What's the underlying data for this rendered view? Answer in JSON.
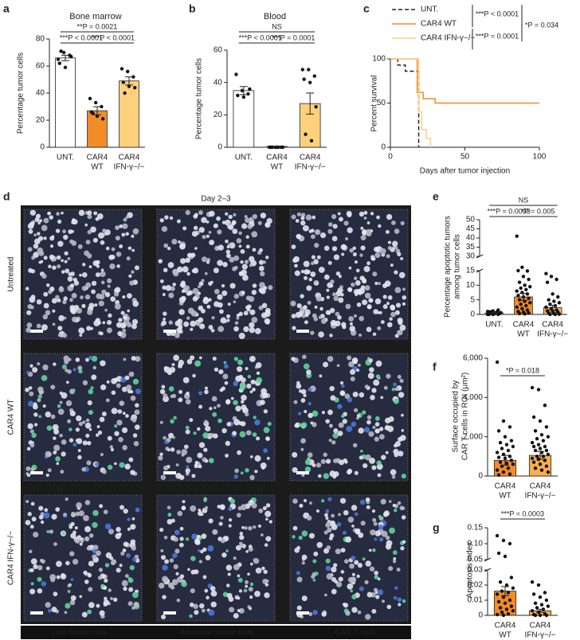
{
  "chart_data": [
    {
      "type": "bar",
      "panel": "a",
      "title": "Bone marrow",
      "ylabel": [
        "Percentage tumor cells"
      ],
      "categories": [
        [
          "UNT."
        ],
        [
          "CAR4",
          "WT"
        ],
        [
          "CAR4",
          "IFN-γ−/−"
        ]
      ],
      "values": [
        66,
        27,
        49
      ],
      "errors": [
        2,
        3,
        3
      ],
      "points": [
        [
          65,
          70,
          68,
          62,
          59,
          67,
          71
        ],
        [
          36,
          33,
          30,
          26,
          23,
          21,
          25
        ],
        [
          58,
          56,
          52,
          48,
          45,
          44,
          40
        ]
      ],
      "colors": [
        "#ffffff",
        "#f28c28",
        "#fdd17c"
      ],
      "ylim": [
        0,
        80
      ],
      "yticks": [
        0,
        20,
        40,
        60,
        80
      ],
      "annotations": [
        "**P = 0.0021",
        "***P < 0.0001",
        "***P < 0.0001"
      ]
    },
    {
      "type": "bar",
      "panel": "b",
      "title": "Blood",
      "ylabel": [
        "Percentage tumor cells"
      ],
      "categories": [
        [
          "UNT."
        ],
        [
          "CAR4",
          "WT"
        ],
        [
          "CAR4",
          "IFN-γ−/−"
        ]
      ],
      "values": [
        35,
        0.5,
        27
      ],
      "errors": [
        2.5,
        0.2,
        6.5
      ],
      "points": [
        [
          45,
          35,
          33,
          32,
          31,
          36
        ],
        [
          0,
          0,
          0,
          0,
          0,
          0,
          0,
          0
        ],
        [
          48,
          48,
          44,
          42,
          40,
          25,
          8,
          4
        ]
      ],
      "colors": [
        "#ffffff",
        "#f28c28",
        "#fdd17c"
      ],
      "ylim": [
        0,
        60
      ],
      "yticks": [
        0,
        20,
        40,
        60
      ],
      "annotations": [
        "NS",
        "***P < 0.0001",
        "***P = 0.0001"
      ]
    },
    {
      "type": "line",
      "panel": "c",
      "xlabel": "Days after tumor injection",
      "ylabel": [
        "Percent survival"
      ],
      "series": [
        {
          "name": "UNT.",
          "color": "#222222",
          "dashed": true,
          "x": [
            0,
            5,
            5,
            10,
            10,
            19,
            19
          ],
          "values": [
            100,
            100,
            93,
            93,
            86,
            86,
            0
          ]
        },
        {
          "name": "CAR4 WT",
          "color": "#f28c28",
          "dashed": false,
          "x": [
            0,
            18,
            18,
            22,
            22,
            30,
            30,
            100
          ],
          "values": [
            100,
            100,
            62,
            62,
            55,
            55,
            50,
            50
          ]
        },
        {
          "name": "CAR4 IFN-γ−/−",
          "color": "#fdd17c",
          "dashed": false,
          "x": [
            0,
            19,
            19,
            21,
            21,
            24,
            24,
            27,
            27
          ],
          "values": [
            100,
            100,
            40,
            40,
            20,
            20,
            10,
            10,
            0
          ]
        }
      ],
      "xlim": [
        0,
        100
      ],
      "xticks": [
        0,
        50,
        100
      ],
      "ylim": [
        0,
        100
      ],
      "yticks": [
        0,
        50,
        100
      ],
      "annotations": [
        "***P < 0.0001",
        "***P = 0.0001",
        "*P = 0.034"
      ]
    },
    {
      "type": "bar",
      "panel": "e",
      "ylabel": [
        "Percentage apoptotic tumors",
        "among tumor cells"
      ],
      "categories": [
        [
          "UNT."
        ],
        [
          "CAR4",
          "WT"
        ],
        [
          "CAR4",
          "IFN-γ−/−"
        ]
      ],
      "values": [
        0.5,
        6,
        2.3
      ],
      "errors": [
        0.2,
        1.2,
        0.8
      ],
      "points": [
        [
          0,
          0,
          0,
          0.1,
          0.2,
          0.3,
          0.4,
          0.5,
          0.6,
          0.7,
          0.8,
          1,
          1.2,
          1.5,
          0,
          0.2,
          0.4,
          0.9
        ],
        [
          41,
          24,
          22,
          15,
          13,
          12,
          11,
          10,
          9.5,
          9,
          8.5,
          8,
          7.5,
          7,
          6.5,
          6,
          5.5,
          5,
          4.5,
          4,
          3.5,
          3,
          2.5,
          2,
          1.5,
          1,
          0.8,
          0.5,
          0.3,
          0.2
        ],
        [
          14,
          13,
          12,
          11,
          7,
          6,
          5,
          4.5,
          4,
          3.5,
          3,
          2.5,
          2,
          1.5,
          1.2,
          1,
          0.8,
          0.5,
          0.3,
          0.1,
          0,
          0
        ]
      ],
      "colors": [
        "#ffffff",
        "#f28c28",
        "#f8b04c"
      ],
      "ylim": [
        0,
        50
      ],
      "ybreak": [
        15,
        30
      ],
      "yticks": [
        0,
        5,
        10,
        15,
        30,
        35,
        40,
        45,
        50
      ],
      "annotations": [
        "NS",
        "***P = 0.0003",
        "*P = 0.005"
      ]
    },
    {
      "type": "bar",
      "panel": "f",
      "ylabel": [
        "Surface occupied by",
        "CAR T cells in ROI (μm²)"
      ],
      "categories": [
        [
          "CAR4",
          "WT"
        ],
        [
          "CAR4",
          "IFN-γ−/−"
        ]
      ],
      "values": [
        800,
        1050
      ],
      "errors": [
        250,
        200
      ],
      "points": [
        [
          5800,
          2800,
          2500,
          2300,
          2000,
          1800,
          1700,
          1600,
          1500,
          1400,
          1300,
          1200,
          1100,
          1000,
          950,
          900,
          800,
          700,
          650,
          600,
          500,
          400,
          300,
          200,
          100,
          50
        ],
        [
          4500,
          4400,
          3600,
          3000,
          2800,
          2500,
          2300,
          2100,
          2000,
          1900,
          1800,
          1700,
          1600,
          1500,
          1500,
          1400,
          1300,
          1300,
          1200,
          1100,
          1000,
          1000,
          900,
          850,
          800,
          700,
          600,
          500,
          400,
          300,
          200
        ]
      ],
      "colors": [
        "#f28c28",
        "#f8b04c"
      ],
      "ylim": [
        0,
        6000
      ],
      "yticks": [
        0,
        {
          "value": 2000,
          "label": "2,000"
        },
        {
          "value": 4000,
          "label": "4,000"
        },
        {
          "value": 6000,
          "label": "6,000"
        }
      ],
      "annotations": [
        "*P = 0.018"
      ]
    },
    {
      "type": "bar",
      "panel": "g",
      "ylabel": [
        "Apoptosis index"
      ],
      "categories": [
        [
          "CAR4",
          "WT"
        ],
        [
          "CAR4",
          "IFN-γ−/−"
        ]
      ],
      "values": [
        0.016,
        0.003
      ],
      "errors": [
        0.003,
        0.001
      ],
      "points": [
        [
          0.125,
          0.11,
          0.1,
          0.07,
          0.06,
          0.025,
          0.022,
          0.02,
          0.018,
          0.016,
          0.015,
          0.014,
          0.012,
          0.01,
          0.009,
          0.008,
          0.006,
          0.005,
          0.004,
          0.003,
          0.002,
          0.001,
          0.0005,
          0
        ],
        [
          0.022,
          0.02,
          0.015,
          0.014,
          0.012,
          0.01,
          0.008,
          0.007,
          0.006,
          0.005,
          0.004,
          0.003,
          0.002,
          0.001,
          0.0005,
          0,
          0,
          0
        ]
      ],
      "colors": [
        "#f28c28",
        "#f8b04c"
      ],
      "ylim": [
        0,
        0.15
      ],
      "ybreak": [
        0.03,
        0.05
      ],
      "yticks": [
        0,
        0.01,
        0.02,
        0.03,
        {
          "value": 0.05,
          "label": "0.05"
        },
        {
          "value": 0.1,
          "label": "0.10"
        },
        {
          "value": 0.15,
          "label": "0.15"
        }
      ],
      "annotations": [
        "***P = 0.0003"
      ]
    }
  ],
  "panel_d": {
    "label": "d",
    "title": "Day 2–3",
    "rows": [
      "Untreated",
      "CAR4 WT",
      "CAR4 IFN-γ−/−"
    ],
    "legend": [
      {
        "text": "Live tumor cells",
        "color": "#ffffff"
      },
      {
        "text": "Apoptotic tumor cells",
        "color": "#4a78d8"
      },
      {
        "text": "CAR T cells",
        "color": "#5fd39a"
      }
    ]
  }
}
